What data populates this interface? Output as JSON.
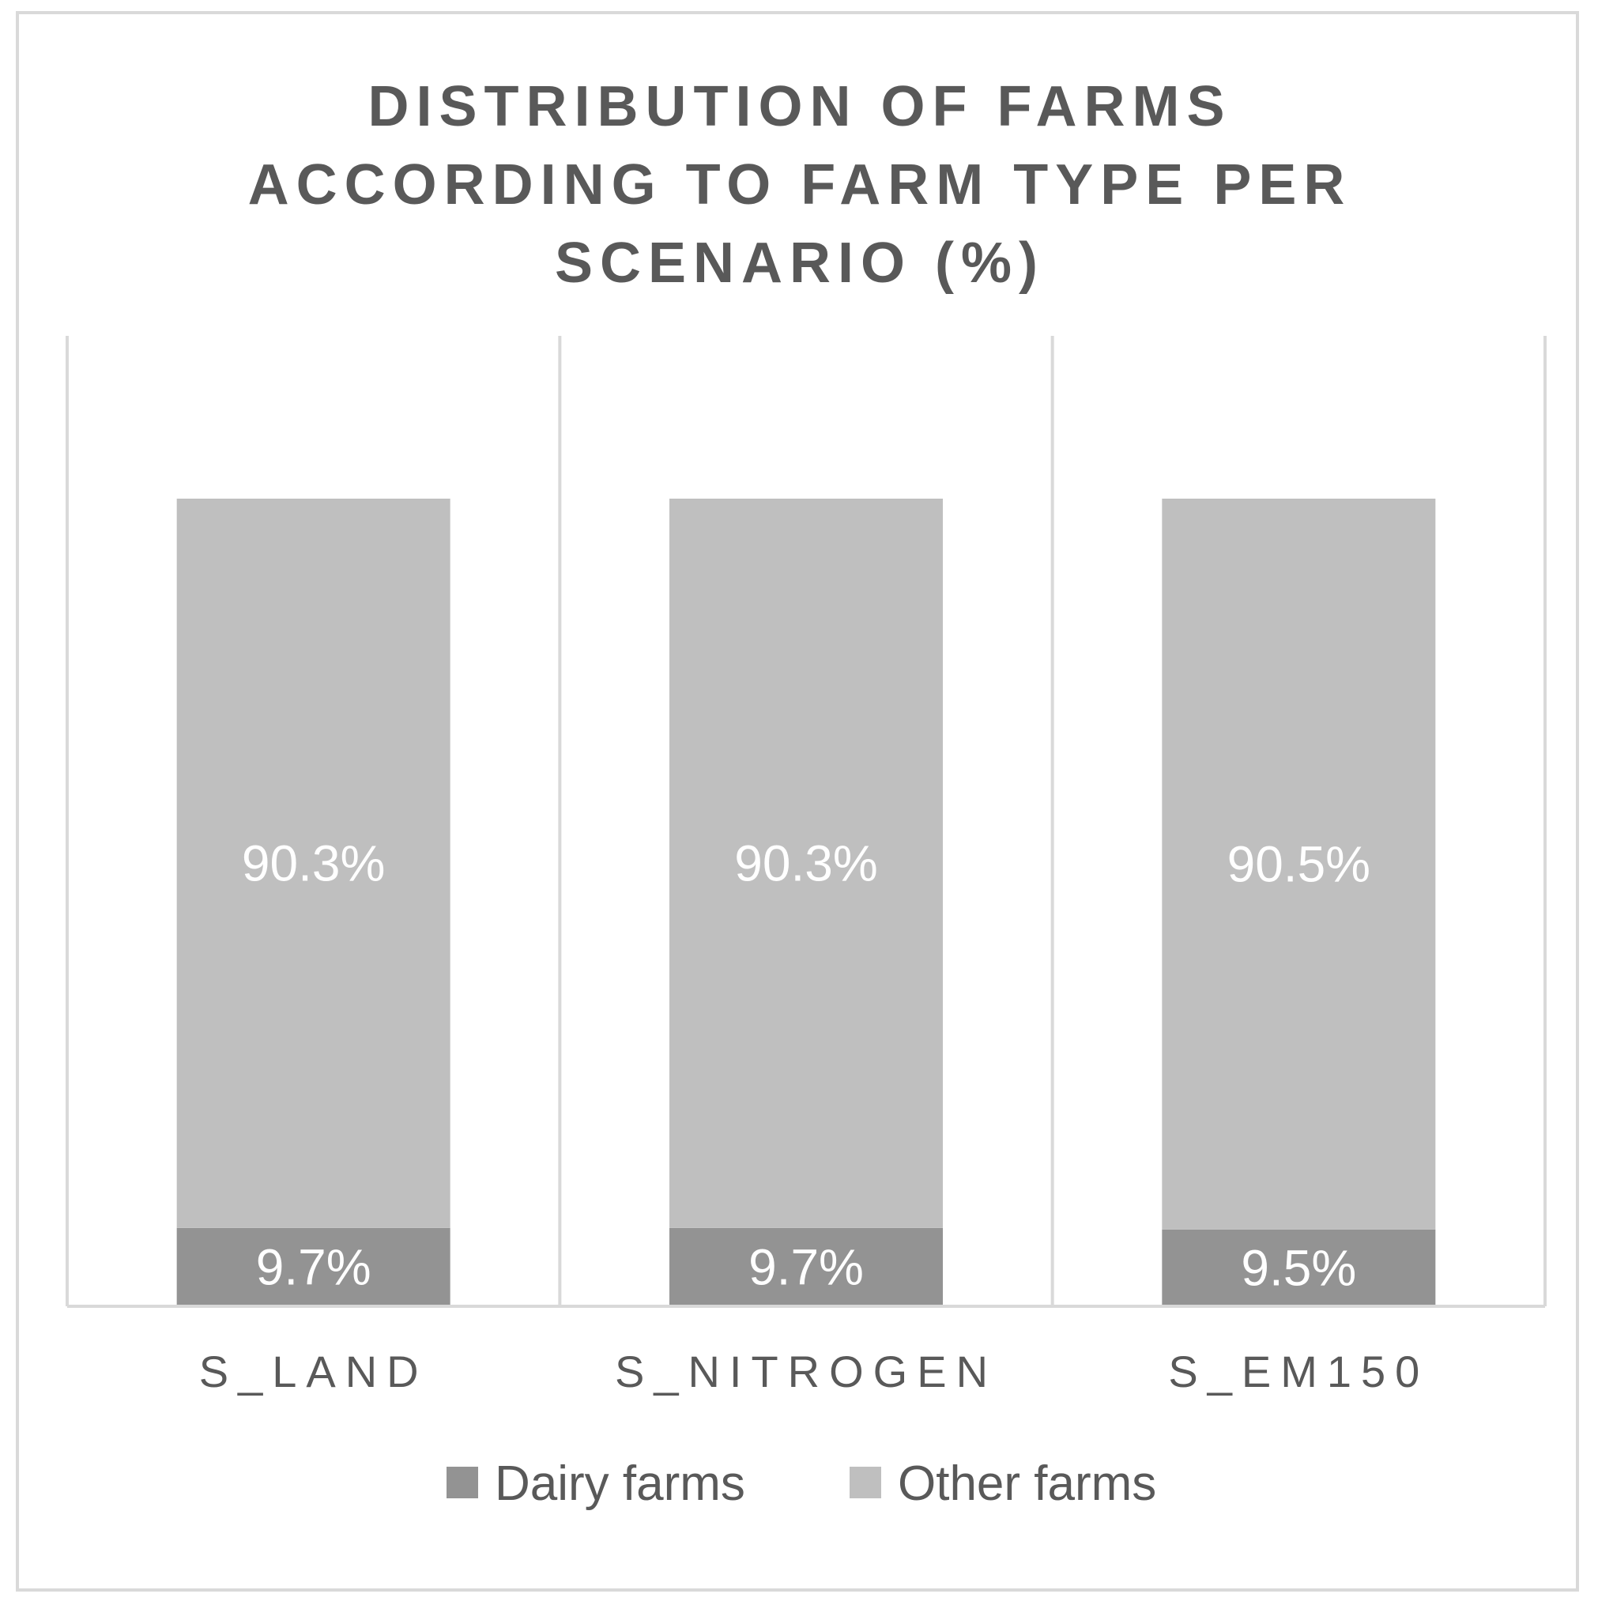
{
  "chart_data": {
    "type": "bar",
    "stacked": true,
    "title": "DISTRIBUTION OF FARMS ACCORDING TO FARM TYPE PER SCENARIO (%)",
    "title_lines": [
      "DISTRIBUTION OF FARMS",
      "ACCORDING TO FARM TYPE PER",
      "SCENARIO (%)"
    ],
    "categories": [
      "S_LAND",
      "S_NITROGEN",
      "S_EM150"
    ],
    "series": [
      {
        "name": "Dairy farms",
        "color": "#939393",
        "values": [
          9.7,
          9.7,
          9.5
        ],
        "labels": [
          "9.7%",
          "9.7%",
          "9.5%"
        ]
      },
      {
        "name": "Other farms",
        "color": "#bfbfbf",
        "values": [
          90.3,
          90.3,
          90.5
        ],
        "labels": [
          "90.3%",
          "90.3%",
          "90.5%"
        ]
      }
    ],
    "ylim": [
      0,
      100
    ],
    "xlabel": "",
    "ylabel": "",
    "grid": "vertical separators between categories",
    "legend_position": "bottom",
    "colors": {
      "axis": "#d9d9d9",
      "text": "#595959",
      "data_label": "#ffffff"
    }
  }
}
